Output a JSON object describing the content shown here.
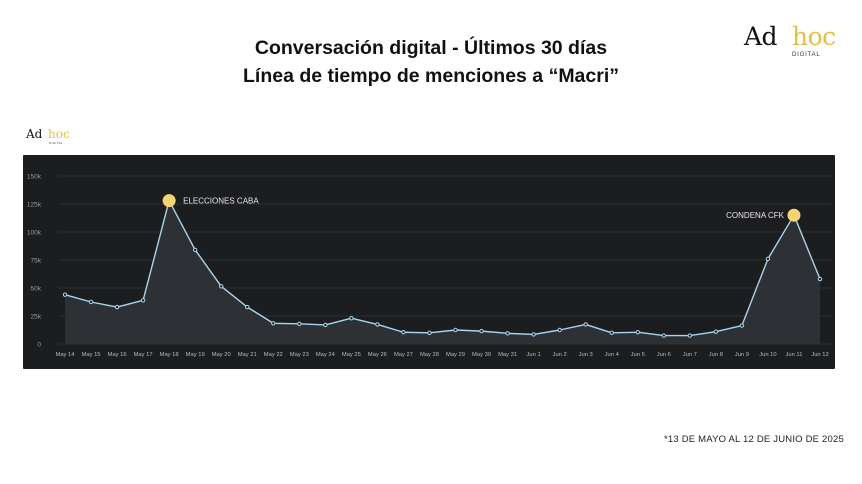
{
  "header": {
    "title_line1": "Conversación digital - Últimos 30 días",
    "title_line2": "Línea de tiempo de menciones a “Macri”"
  },
  "brand": {
    "name_part1": "Ad",
    "name_part2": "hoc",
    "subtitle": "DIGITAL",
    "accent_color": "#e8bf3c"
  },
  "footnote": "*13 DE MAYO AL 12 DE JUNIO DE 2025",
  "chart_data": {
    "type": "area",
    "categories": [
      "May 14",
      "May 15",
      "May 16",
      "May 17",
      "May 18",
      "May 19",
      "May 20",
      "May 21",
      "May 22",
      "May 23",
      "May 24",
      "May 25",
      "May 26",
      "May 27",
      "May 28",
      "May 29",
      "May 30",
      "May 31",
      "Jun 1",
      "Jun 2",
      "Jun 3",
      "Jun 4",
      "Jun 5",
      "Jun 6",
      "Jun 7",
      "Jun 8",
      "Jun 9",
      "Jun 10",
      "Jun 11",
      "Jun 12"
    ],
    "values": [
      44000,
      37500,
      33000,
      39000,
      128000,
      84000,
      51500,
      33000,
      18500,
      18000,
      17000,
      23000,
      17500,
      10500,
      10000,
      12500,
      11500,
      9500,
      8500,
      12500,
      17500,
      10000,
      10500,
      7500,
      7500,
      11000,
      16500,
      76000,
      115000,
      58000
    ],
    "yticks": [
      0,
      25000,
      50000,
      75000,
      100000,
      125000,
      150000
    ],
    "ytick_labels": [
      "0",
      "25k",
      "50k",
      "75k",
      "100k",
      "125k",
      "150k"
    ],
    "ylim": [
      0,
      150000
    ],
    "grid": true,
    "line_color": "#a9d4ee",
    "highlight_color": "#f7d472",
    "annotations": [
      {
        "category": "May 18",
        "label": "ELECCIONES CABA"
      },
      {
        "category": "Jun 11",
        "label": "CONDENA CFK"
      }
    ]
  }
}
